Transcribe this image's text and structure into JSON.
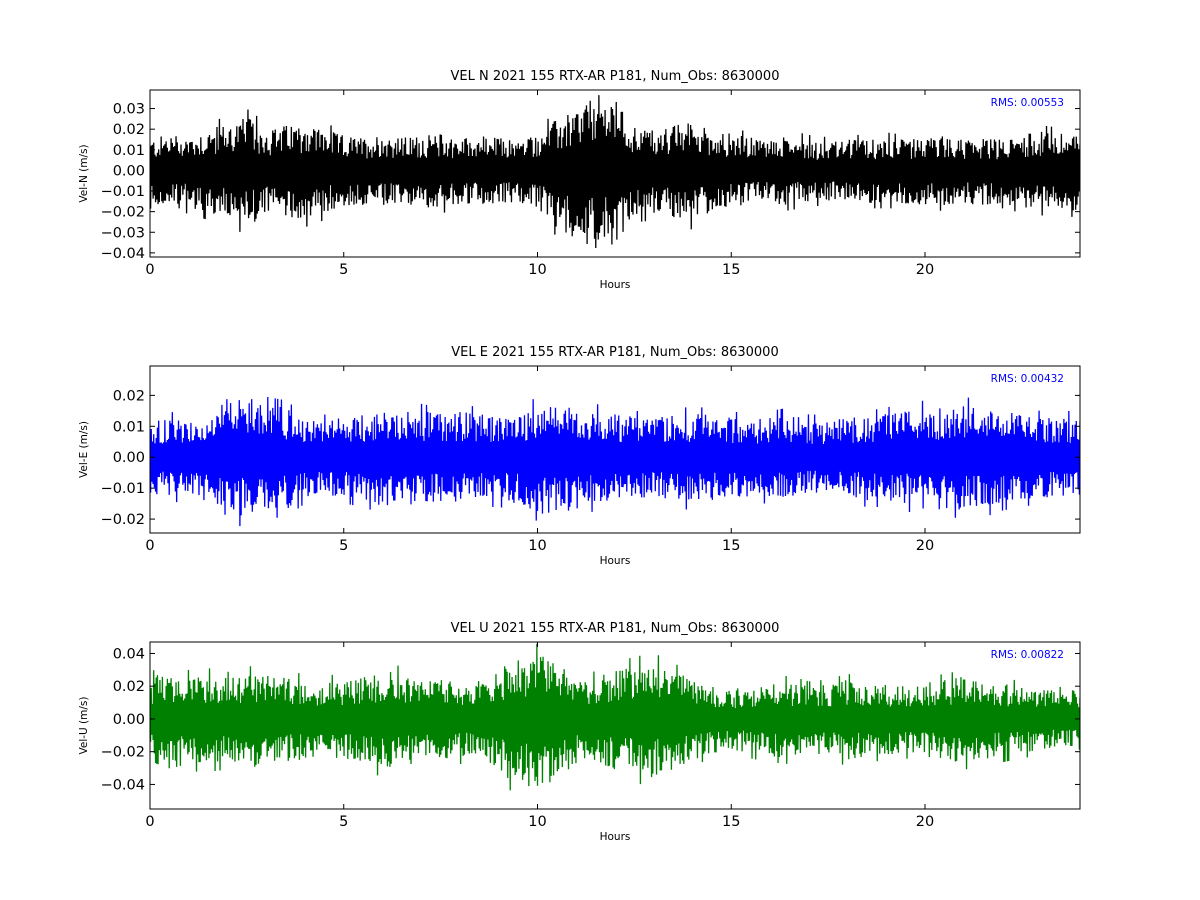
{
  "chart_data": [
    {
      "type": "line",
      "title": "VEL N 2021 155 RTX-AR  P181, Num_Obs: 8630000",
      "xlabel": "Hours",
      "ylabel": "Vel-N (m/s)",
      "xlim": [
        0,
        24
      ],
      "ylim": [
        -0.042,
        0.039
      ],
      "x_ticks": [
        0,
        5,
        10,
        15,
        20
      ],
      "x_tick_labels": [
        "0",
        "5",
        "10",
        "15",
        "20"
      ],
      "y_ticks": [
        -0.04,
        -0.03,
        -0.02,
        -0.01,
        0.0,
        0.01,
        0.02,
        0.03
      ],
      "y_tick_labels": [
        "−0.04",
        "−0.03",
        "−0.02",
        "−0.01",
        "0.00",
        "0.01",
        "0.02",
        "0.03"
      ],
      "rms_label": "RMS:  0.00553",
      "color": "#000000",
      "grid": false,
      "series": [
        {
          "x": [
            0,
            0.5,
            1,
            1.5,
            2,
            2.5,
            3,
            3.5,
            4,
            4.5,
            5,
            5.5,
            6,
            6.5,
            7,
            7.5,
            8,
            8.5,
            9,
            9.5,
            10,
            10.5,
            11,
            11.5,
            12,
            12.5,
            13,
            13.5,
            14,
            14.5,
            15,
            15.5,
            16,
            16.5,
            17,
            17.5,
            18,
            18.5,
            19,
            19.5,
            20,
            20.5,
            21,
            21.5,
            22,
            22.5,
            23,
            23.5,
            24
          ],
          "upper": [
            0.015,
            0.018,
            0.017,
            0.02,
            0.023,
            0.026,
            0.02,
            0.022,
            0.024,
            0.02,
            0.017,
            0.016,
            0.018,
            0.016,
            0.017,
            0.018,
            0.016,
            0.017,
            0.016,
            0.015,
            0.018,
            0.025,
            0.03,
            0.037,
            0.035,
            0.022,
            0.02,
            0.022,
            0.024,
            0.02,
            0.018,
            0.016,
            0.015,
            0.017,
            0.015,
            0.014,
            0.015,
            0.015,
            0.016,
            0.015,
            0.016,
            0.017,
            0.015,
            0.016,
            0.015,
            0.018,
            0.019,
            0.018,
            0.019
          ],
          "lower": [
            -0.016,
            -0.019,
            -0.018,
            -0.021,
            -0.024,
            -0.027,
            -0.022,
            -0.023,
            -0.024,
            -0.021,
            -0.018,
            -0.017,
            -0.018,
            -0.017,
            -0.018,
            -0.018,
            -0.017,
            -0.017,
            -0.016,
            -0.016,
            -0.019,
            -0.028,
            -0.033,
            -0.038,
            -0.036,
            -0.022,
            -0.021,
            -0.023,
            -0.025,
            -0.02,
            -0.018,
            -0.016,
            -0.016,
            -0.017,
            -0.015,
            -0.015,
            -0.015,
            -0.016,
            -0.016,
            -0.016,
            -0.017,
            -0.017,
            -0.016,
            -0.017,
            -0.016,
            -0.018,
            -0.019,
            -0.019,
            -0.02
          ]
        }
      ]
    },
    {
      "type": "line",
      "title": "VEL E 2021 155 RTX-AR  P181, Num_Obs: 8630000",
      "xlabel": "Hours",
      "ylabel": "Vel-E (m/s)",
      "xlim": [
        0,
        24
      ],
      "ylim": [
        -0.0245,
        0.0295
      ],
      "x_ticks": [
        0,
        5,
        10,
        15,
        20
      ],
      "x_tick_labels": [
        "0",
        "5",
        "10",
        "15",
        "20"
      ],
      "y_ticks": [
        -0.02,
        -0.01,
        0.0,
        0.01,
        0.02
      ],
      "y_tick_labels": [
        "−0.02",
        "−0.01",
        "0.00",
        "0.01",
        "0.02"
      ],
      "rms_label": "RMS:  0.00432",
      "color": "#0000ff",
      "grid": false,
      "series": [
        {
          "x": [
            0,
            0.5,
            1,
            1.5,
            2,
            2.5,
            3,
            3.5,
            4,
            4.5,
            5,
            5.5,
            6,
            6.5,
            7,
            7.5,
            8,
            8.5,
            9,
            9.5,
            10,
            10.5,
            11,
            11.5,
            12,
            12.5,
            13,
            13.5,
            14,
            14.5,
            15,
            15.5,
            16,
            16.5,
            17,
            17.5,
            18,
            18.5,
            19,
            19.5,
            20,
            20.5,
            21,
            21.5,
            22,
            22.5,
            23,
            23.5,
            24
          ],
          "upper": [
            0.012,
            0.013,
            0.011,
            0.014,
            0.019,
            0.02,
            0.017,
            0.016,
            0.012,
            0.012,
            0.013,
            0.014,
            0.015,
            0.016,
            0.015,
            0.014,
            0.015,
            0.014,
            0.013,
            0.014,
            0.017,
            0.018,
            0.016,
            0.015,
            0.014,
            0.013,
            0.013,
            0.014,
            0.014,
            0.014,
            0.013,
            0.012,
            0.013,
            0.014,
            0.012,
            0.012,
            0.013,
            0.013,
            0.014,
            0.015,
            0.016,
            0.016,
            0.017,
            0.016,
            0.015,
            0.014,
            0.013,
            0.013,
            0.013
          ],
          "lower": [
            -0.012,
            -0.013,
            -0.012,
            -0.015,
            -0.02,
            -0.019,
            -0.017,
            -0.017,
            -0.013,
            -0.012,
            -0.013,
            -0.014,
            -0.016,
            -0.016,
            -0.015,
            -0.015,
            -0.015,
            -0.014,
            -0.014,
            -0.015,
            -0.018,
            -0.019,
            -0.017,
            -0.015,
            -0.014,
            -0.014,
            -0.013,
            -0.014,
            -0.015,
            -0.014,
            -0.013,
            -0.013,
            -0.013,
            -0.014,
            -0.012,
            -0.012,
            -0.013,
            -0.014,
            -0.014,
            -0.015,
            -0.017,
            -0.017,
            -0.017,
            -0.017,
            -0.015,
            -0.014,
            -0.013,
            -0.013,
            -0.013
          ]
        }
      ]
    },
    {
      "type": "line",
      "title": "VEL U 2021 155 RTX-AR  P181, Num_Obs: 8630000",
      "xlabel": "Hours",
      "ylabel": "Vel-U (m/s)",
      "xlim": [
        0,
        24
      ],
      "ylim": [
        -0.055,
        0.047
      ],
      "x_ticks": [
        0,
        5,
        10,
        15,
        20
      ],
      "x_tick_labels": [
        "0",
        "5",
        "10",
        "15",
        "20"
      ],
      "y_ticks": [
        -0.04,
        -0.02,
        0.0,
        0.02,
        0.04
      ],
      "y_tick_labels": [
        "−0.04",
        "−0.02",
        "0.00",
        "0.02",
        "0.04"
      ],
      "rms_label": "RMS:  0.00822",
      "color": "#008000",
      "grid": false,
      "series": [
        {
          "x": [
            0,
            0.5,
            1,
            1.5,
            2,
            2.5,
            3,
            3.5,
            4,
            4.5,
            5,
            5.5,
            6,
            6.5,
            7,
            7.5,
            8,
            8.5,
            9,
            9.5,
            10,
            10.5,
            11,
            11.5,
            12,
            12.5,
            13,
            13.5,
            14,
            14.5,
            15,
            15.5,
            16,
            16.5,
            17,
            17.5,
            18,
            18.5,
            19,
            19.5,
            20,
            20.5,
            21,
            21.5,
            22,
            22.5,
            23,
            23.5,
            24
          ],
          "upper": [
            0.025,
            0.03,
            0.026,
            0.027,
            0.025,
            0.028,
            0.028,
            0.025,
            0.024,
            0.023,
            0.024,
            0.026,
            0.03,
            0.028,
            0.025,
            0.024,
            0.023,
            0.02,
            0.03,
            0.038,
            0.04,
            0.035,
            0.027,
            0.025,
            0.03,
            0.033,
            0.035,
            0.03,
            0.024,
            0.02,
            0.018,
            0.02,
            0.022,
            0.023,
            0.02,
            0.021,
            0.024,
            0.022,
            0.021,
            0.02,
            0.022,
            0.024,
            0.026,
            0.024,
            0.022,
            0.02,
            0.018,
            0.017,
            0.018
          ],
          "lower": [
            -0.026,
            -0.032,
            -0.028,
            -0.028,
            -0.027,
            -0.03,
            -0.029,
            -0.026,
            -0.025,
            -0.024,
            -0.025,
            -0.027,
            -0.031,
            -0.029,
            -0.026,
            -0.025,
            -0.024,
            -0.021,
            -0.032,
            -0.042,
            -0.044,
            -0.037,
            -0.028,
            -0.026,
            -0.031,
            -0.034,
            -0.036,
            -0.031,
            -0.025,
            -0.021,
            -0.019,
            -0.021,
            -0.023,
            -0.024,
            -0.021,
            -0.022,
            -0.025,
            -0.023,
            -0.022,
            -0.021,
            -0.023,
            -0.025,
            -0.027,
            -0.025,
            -0.023,
            -0.021,
            -0.019,
            -0.018,
            -0.019
          ]
        }
      ]
    }
  ]
}
